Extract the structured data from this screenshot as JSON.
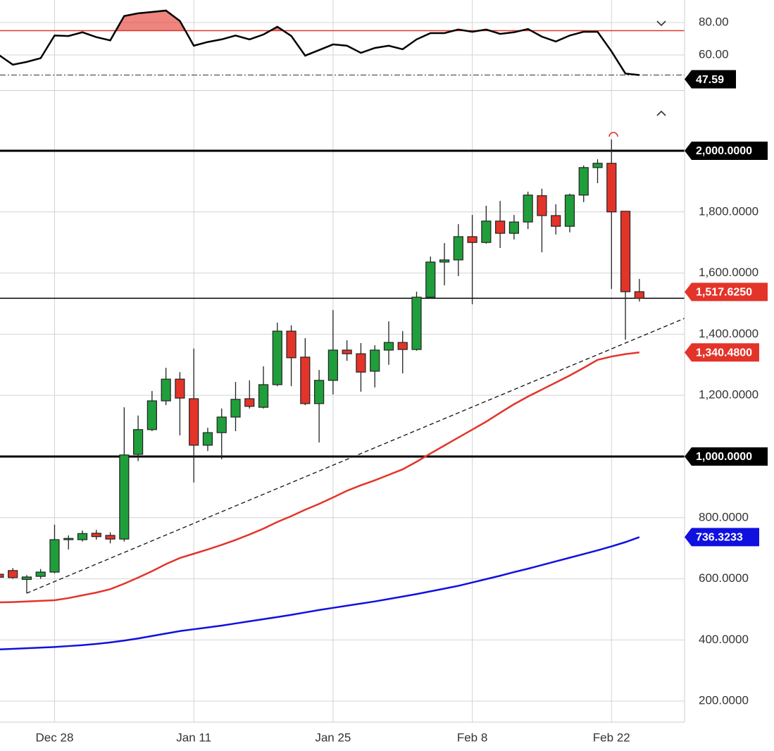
{
  "chart_data": {
    "type": "candlestick",
    "categories": [
      null,
      null,
      null,
      null,
      "Dec 28",
      null,
      null,
      null,
      null,
      null,
      null,
      null,
      null,
      null,
      "Jan 11",
      null,
      null,
      null,
      null,
      null,
      null,
      null,
      null,
      null,
      "Jan 25",
      null,
      null,
      null,
      null,
      null,
      null,
      null,
      null,
      null,
      "Feb 8",
      null,
      null,
      null,
      null,
      null,
      null,
      null,
      null,
      null,
      "Feb 22",
      null,
      null
    ],
    "open": [
      615,
      627,
      598,
      608,
      622,
      728,
      728,
      749,
      742,
      730,
      1007,
      1088,
      1182,
      1253,
      1189,
      1037,
      1078,
      1129,
      1189,
      1161,
      1235,
      1410,
      1325,
      1173,
      1249,
      1348,
      1336,
      1279,
      1348,
      1373,
      1350,
      1521,
      1636,
      1643,
      1719,
      1700,
      1770,
      1730,
      1767,
      1853,
      1788,
      1753,
      1855,
      1945,
      1959,
      1802,
      1539
    ],
    "high": [
      620,
      635,
      612,
      632,
      777,
      742,
      758,
      760,
      752,
      1161,
      1134,
      1214,
      1290,
      1276,
      1353,
      1094,
      1157,
      1244,
      1249,
      1295,
      1438,
      1429,
      1387,
      1283,
      1479,
      1380,
      1371,
      1364,
      1442,
      1410,
      1539,
      1654,
      1698,
      1760,
      1790,
      1820,
      1836,
      1790,
      1866,
      1876,
      1825,
      1860,
      1952,
      1972,
      2037,
      1802,
      1581
    ],
    "low": [
      600,
      600,
      553,
      600,
      618,
      696,
      722,
      728,
      716,
      722,
      985,
      1083,
      1168,
      1069,
      915,
      1018,
      991,
      1083,
      1157,
      1157,
      1230,
      1230,
      1168,
      1046,
      1203,
      1313,
      1212,
      1226,
      1300,
      1272,
      1346,
      1516,
      1560,
      1590,
      1498,
      1696,
      1682,
      1710,
      1744,
      1668,
      1726,
      1733,
      1832,
      1894,
      1548,
      1382,
      1507
    ],
    "close": [
      605,
      604,
      606,
      622,
      728,
      732,
      748,
      738,
      730,
      1005,
      1088,
      1182,
      1253,
      1191,
      1037,
      1078,
      1129,
      1187,
      1164,
      1235,
      1410,
      1323,
      1173,
      1249,
      1348,
      1336,
      1276,
      1348,
      1373,
      1350,
      1521,
      1636,
      1643,
      1719,
      1700,
      1770,
      1730,
      1767,
      1855,
      1788,
      1753,
      1855,
      1945,
      1959,
      1800,
      1539,
      1517.625
    ],
    "last_label": "1,517.6250",
    "up_color": "#1f9e3b",
    "down_color": "#e3342a",
    "ylim": [
      131.3,
      2193.5
    ],
    "yticks": [
      {
        "value": 200,
        "label": "200.0000"
      },
      {
        "value": 400,
        "label": "400.0000"
      },
      {
        "value": 600,
        "label": "600.0000"
      },
      {
        "value": 800,
        "label": "800.0000"
      },
      {
        "value": 1000,
        "label": "1,000.0000"
      },
      {
        "value": 1200,
        "label": "1,200.0000"
      },
      {
        "value": 1400,
        "label": "1,400.0000"
      },
      {
        "value": 1600,
        "label": "1,600.0000"
      },
      {
        "value": 1800,
        "label": "1,800.0000"
      },
      {
        "value": 2000,
        "label": "2,000.0000"
      }
    ],
    "levels": [
      1000,
      2000
    ],
    "grid": true,
    "lines": [
      {
        "color": "#e3342a",
        "values": [
          523,
          524,
          526,
          528,
          530,
          537,
          546,
          555,
          566,
          584,
          604,
          625,
          648,
          668,
          682,
          696,
          711,
          727,
          745,
          764,
          786,
          805,
          826,
          845,
          866,
          888,
          906,
          922,
          940,
          958,
          983,
          1010,
          1036,
          1062,
          1088,
          1114,
          1143,
          1171,
          1196,
          1219,
          1242,
          1265,
          1290,
          1316,
          1327,
          1335,
          1340.48
        ],
        "last_label": "1,340.4800"
      },
      {
        "color": "#1010e0",
        "values": [
          369,
          371,
          373,
          375,
          377,
          380,
          383,
          387,
          392,
          398,
          405,
          413,
          421,
          429,
          435,
          441,
          447,
          454,
          461,
          468,
          475,
          482,
          490,
          498,
          505,
          512,
          519,
          526,
          534,
          542,
          550,
          559,
          568,
          577,
          588,
          599,
          610,
          622,
          633,
          645,
          657,
          669,
          681,
          693,
          706,
          720,
          736.3233
        ],
        "last_label": "736.3233"
      }
    ],
    "trendline": {
      "x": [
        2,
        49.25
      ],
      "values": [
        553,
        1452
      ]
    },
    "rsi": {
      "values": [
        60,
        54,
        55.7,
        58,
        72,
        71.7,
        74,
        71,
        69,
        84,
        85.7,
        86.5,
        87.4,
        81,
        65.7,
        68,
        69.6,
        72,
        69.6,
        72.6,
        77.4,
        71.7,
        59.6,
        63,
        66.5,
        65.7,
        61.3,
        64.3,
        65.7,
        63.5,
        69.6,
        73.5,
        73.5,
        75.7,
        74.3,
        75.7,
        73,
        74,
        76,
        71.3,
        68.3,
        72,
        74.3,
        74.3,
        62.2,
        48.5,
        47.59
      ],
      "last_label": "47.59",
      "ylim": [
        38.26,
        93.91
      ],
      "yticks": [
        {
          "value": 60,
          "label": "60.00"
        },
        {
          "value": 80,
          "label": "80.00"
        }
      ],
      "overbought": 75
    }
  }
}
